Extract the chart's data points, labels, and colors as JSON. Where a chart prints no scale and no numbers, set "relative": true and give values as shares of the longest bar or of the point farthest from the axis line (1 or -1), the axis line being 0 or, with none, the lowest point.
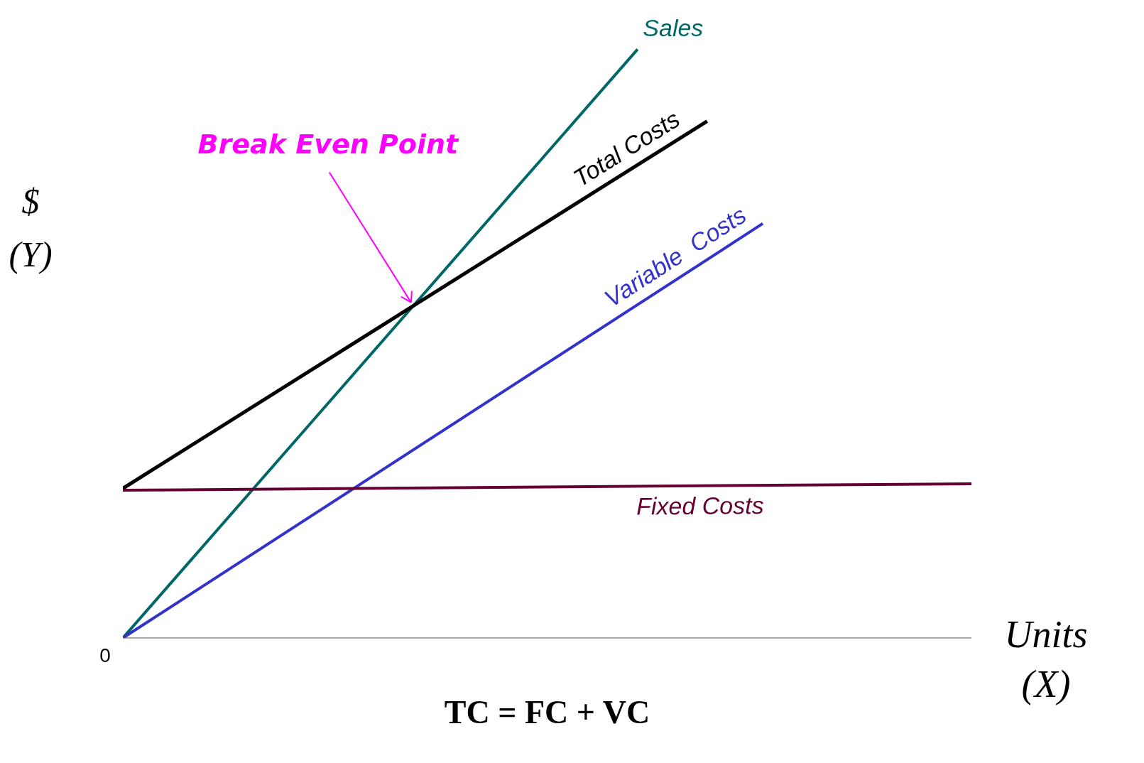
{
  "chart_data": {
    "type": "line",
    "relative": true,
    "xlabel": "Units (X)",
    "ylabel": "$ (Y)",
    "categories": [
      null,
      null,
      null,
      null,
      null,
      null,
      null,
      null,
      null,
      null,
      null,
      null,
      null,
      null,
      null,
      null,
      null,
      null,
      null,
      null,
      null,
      null,
      null,
      null,
      null,
      null,
      null,
      null,
      null,
      null,
      null,
      null,
      null,
      null,
      null,
      null,
      null,
      null,
      null,
      null,
      null,
      null,
      null,
      null,
      null,
      null,
      null,
      null,
      null,
      null,
      null,
      null,
      null,
      null,
      null,
      null,
      null,
      null,
      null,
      null,
      null,
      null
    ],
    "marker": "none",
    "line_style": "solid",
    "series": [
      {
        "name": "Sales",
        "color": "#006666",
        "values": [
          0,
          null,
          null,
          null,
          null,
          null,
          null,
          null,
          null,
          null,
          null,
          null,
          null,
          null,
          null,
          null,
          null,
          null,
          null,
          null,
          null,
          null,
          null,
          null,
          null,
          null,
          null,
          null,
          null,
          null,
          null,
          null,
          null,
          null,
          null,
          null,
          null,
          1,
          null,
          null,
          null,
          null,
          null,
          null,
          null,
          null,
          null,
          null,
          null,
          null,
          null,
          null,
          null,
          null,
          null,
          null,
          null,
          null,
          null,
          null,
          null,
          null
        ]
      },
      {
        "name": "Total Costs",
        "color": "#000000",
        "values": [
          0.254,
          null,
          null,
          null,
          null,
          null,
          null,
          null,
          null,
          null,
          null,
          null,
          null,
          null,
          null,
          null,
          null,
          null,
          null,
          null,
          null,
          null,
          null,
          null,
          null,
          null,
          null,
          null,
          null,
          null,
          null,
          null,
          null,
          null,
          null,
          null,
          null,
          null,
          null,
          null,
          null,
          null,
          0.878,
          null,
          null,
          null,
          null,
          null,
          null,
          null,
          null,
          null,
          null,
          null,
          null,
          null,
          null,
          null,
          null,
          null,
          null,
          null
        ]
      },
      {
        "name": "Variable  Costs",
        "color": "#3333cc",
        "values": [
          0,
          null,
          null,
          null,
          null,
          null,
          null,
          null,
          null,
          null,
          null,
          null,
          null,
          null,
          null,
          null,
          null,
          null,
          null,
          null,
          null,
          null,
          null,
          null,
          null,
          null,
          null,
          null,
          null,
          null,
          null,
          null,
          null,
          null,
          null,
          null,
          null,
          null,
          null,
          null,
          null,
          null,
          null,
          null,
          null,
          null,
          0.704,
          null,
          null,
          null,
          null,
          null,
          null,
          null,
          null,
          null,
          null,
          null,
          null,
          null,
          null,
          null
        ]
      },
      {
        "name": "Fixed Costs",
        "color": "#660033",
        "values": [
          0.251,
          null,
          null,
          null,
          null,
          null,
          null,
          null,
          null,
          null,
          null,
          null,
          null,
          null,
          null,
          null,
          null,
          null,
          null,
          null,
          null,
          null,
          null,
          null,
          null,
          null,
          null,
          null,
          null,
          null,
          null,
          null,
          null,
          null,
          null,
          null,
          null,
          null,
          null,
          null,
          null,
          null,
          null,
          null,
          null,
          null,
          null,
          null,
          null,
          null,
          null,
          null,
          null,
          null,
          null,
          null,
          null,
          null,
          null,
          null,
          null,
          0.262
        ]
      }
    ],
    "annotations": [
      "Break Even Point",
      "0",
      "TC = FC + VC"
    ]
  }
}
